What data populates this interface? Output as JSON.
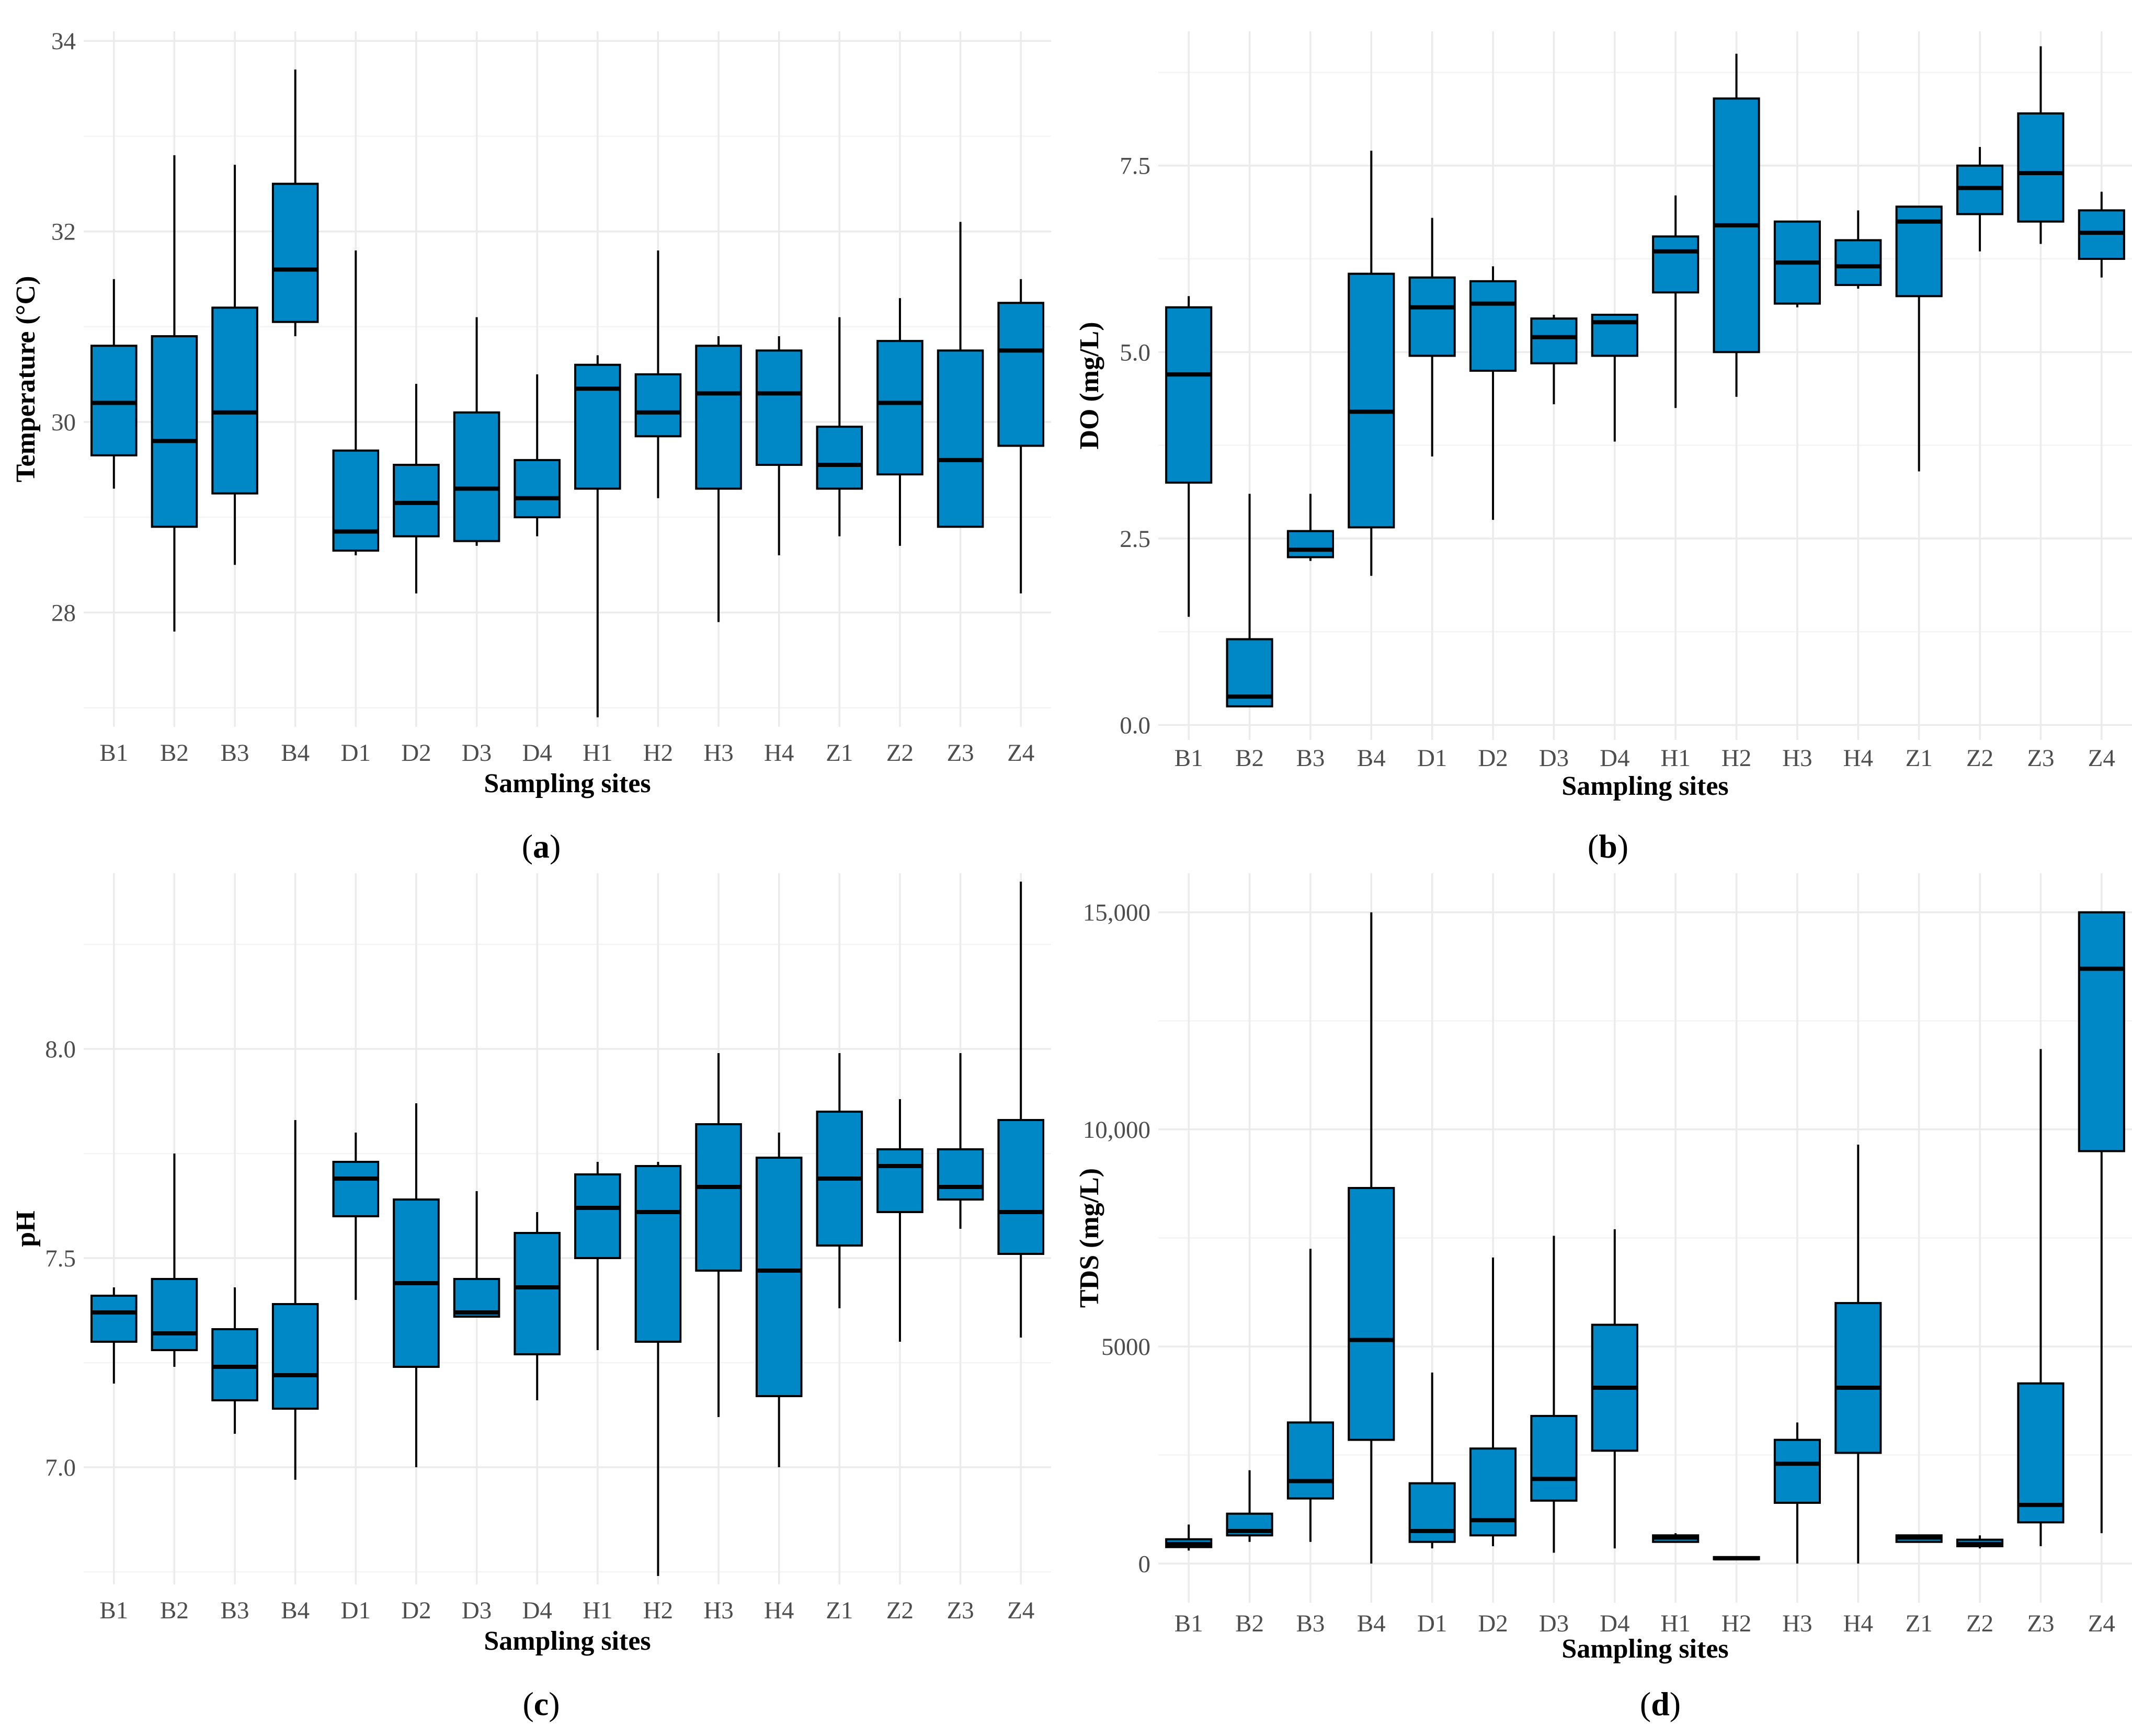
{
  "figure": {
    "colors": {
      "box_fill": "#0087c5",
      "line": "#000000",
      "grid": "#ebebeb"
    }
  },
  "chart_data": [
    {
      "id": "a",
      "type": "box",
      "panel_label": "a",
      "xlabel": "Sampling sites",
      "ylabel": "Temperature (°C)",
      "ylim": [
        26.8,
        34.1
      ],
      "yticks": [
        28,
        30,
        32,
        34
      ],
      "ytick_labels": [
        "28",
        "30",
        "32",
        "34"
      ],
      "categories": [
        "B1",
        "B2",
        "B3",
        "B4",
        "D1",
        "D2",
        "D3",
        "D4",
        "H1",
        "H2",
        "H3",
        "H4",
        "Z1",
        "Z2",
        "Z3",
        "Z4"
      ],
      "boxes": [
        {
          "min": 29.3,
          "q1": 29.65,
          "median": 30.2,
          "q3": 30.8,
          "max": 31.5
        },
        {
          "min": 27.8,
          "q1": 28.9,
          "median": 29.8,
          "q3": 30.9,
          "max": 32.8
        },
        {
          "min": 28.5,
          "q1": 29.25,
          "median": 30.1,
          "q3": 31.2,
          "max": 32.7
        },
        {
          "min": 30.9,
          "q1": 31.05,
          "median": 31.6,
          "q3": 32.5,
          "max": 33.7
        },
        {
          "min": 28.6,
          "q1": 28.65,
          "median": 28.85,
          "q3": 29.7,
          "max": 31.8
        },
        {
          "min": 28.2,
          "q1": 28.8,
          "median": 29.15,
          "q3": 29.55,
          "max": 30.4
        },
        {
          "min": 28.7,
          "q1": 28.75,
          "median": 29.3,
          "q3": 30.1,
          "max": 31.1
        },
        {
          "min": 28.8,
          "q1": 29.0,
          "median": 29.2,
          "q3": 29.6,
          "max": 30.5
        },
        {
          "min": 26.9,
          "q1": 29.3,
          "median": 30.35,
          "q3": 30.6,
          "max": 30.7
        },
        {
          "min": 29.2,
          "q1": 29.85,
          "median": 30.1,
          "q3": 30.5,
          "max": 31.8
        },
        {
          "min": 27.9,
          "q1": 29.3,
          "median": 30.3,
          "q3": 30.8,
          "max": 30.9
        },
        {
          "min": 28.6,
          "q1": 29.55,
          "median": 30.3,
          "q3": 30.75,
          "max": 30.9
        },
        {
          "min": 28.8,
          "q1": 29.3,
          "median": 29.55,
          "q3": 29.95,
          "max": 31.1
        },
        {
          "min": 28.7,
          "q1": 29.45,
          "median": 30.2,
          "q3": 30.85,
          "max": 31.3
        },
        {
          "min": 28.9,
          "q1": 28.9,
          "median": 29.6,
          "q3": 30.75,
          "max": 32.1
        },
        {
          "min": 28.2,
          "q1": 29.75,
          "median": 30.75,
          "q3": 31.25,
          "max": 31.5
        }
      ]
    },
    {
      "id": "b",
      "type": "box",
      "panel_label": "b",
      "xlabel": "Sampling sites",
      "ylabel": "DO (mg/L)",
      "ylim": [
        -0.2,
        9.3
      ],
      "yticks": [
        0,
        2.5,
        5,
        7.5
      ],
      "ytick_labels": [
        "0.0",
        "2.5",
        "5.0",
        "7.5"
      ],
      "categories": [
        "B1",
        "B2",
        "B3",
        "B4",
        "D1",
        "D2",
        "D3",
        "D4",
        "H1",
        "H2",
        "H3",
        "H4",
        "Z1",
        "Z2",
        "Z3",
        "Z4"
      ],
      "boxes": [
        {
          "min": 1.45,
          "q1": 3.25,
          "median": 4.7,
          "q3": 5.6,
          "max": 5.75
        },
        {
          "min": 0.25,
          "q1": 0.25,
          "median": 0.38,
          "q3": 1.15,
          "max": 3.1
        },
        {
          "min": 2.2,
          "q1": 2.25,
          "median": 2.35,
          "q3": 2.6,
          "max": 3.1
        },
        {
          "min": 2.0,
          "q1": 2.65,
          "median": 4.2,
          "q3": 6.05,
          "max": 7.7
        },
        {
          "min": 3.6,
          "q1": 4.95,
          "median": 5.6,
          "q3": 6.0,
          "max": 6.8
        },
        {
          "min": 2.75,
          "q1": 4.75,
          "median": 5.65,
          "q3": 5.95,
          "max": 6.15
        },
        {
          "min": 4.3,
          "q1": 4.85,
          "median": 5.2,
          "q3": 5.45,
          "max": 5.5
        },
        {
          "min": 3.8,
          "q1": 4.95,
          "median": 5.4,
          "q3": 5.5,
          "max": 5.5
        },
        {
          "min": 4.25,
          "q1": 5.8,
          "median": 6.35,
          "q3": 6.55,
          "max": 7.1
        },
        {
          "min": 4.4,
          "q1": 5.0,
          "median": 6.7,
          "q3": 8.4,
          "max": 9.0
        },
        {
          "min": 5.6,
          "q1": 5.65,
          "median": 6.2,
          "q3": 6.75,
          "max": 6.75
        },
        {
          "min": 5.85,
          "q1": 5.9,
          "median": 6.15,
          "q3": 6.5,
          "max": 6.9
        },
        {
          "min": 3.4,
          "q1": 5.75,
          "median": 6.75,
          "q3": 6.95,
          "max": 6.95
        },
        {
          "min": 6.35,
          "q1": 6.85,
          "median": 7.2,
          "q3": 7.5,
          "max": 7.75
        },
        {
          "min": 6.45,
          "q1": 6.75,
          "median": 7.4,
          "q3": 8.2,
          "max": 9.1
        },
        {
          "min": 6.0,
          "q1": 6.25,
          "median": 6.6,
          "q3": 6.9,
          "max": 7.15
        }
      ]
    },
    {
      "id": "c",
      "type": "box",
      "panel_label": "c",
      "xlabel": "Sampling sites",
      "ylabel": "pH",
      "ylim": [
        6.72,
        8.42
      ],
      "yticks": [
        7.0,
        7.5,
        8.0
      ],
      "ytick_labels": [
        "7.0",
        "7.5",
        "8.0"
      ],
      "categories": [
        "B1",
        "B2",
        "B3",
        "B4",
        "D1",
        "D2",
        "D3",
        "D4",
        "H1",
        "H2",
        "H3",
        "H4",
        "Z1",
        "Z2",
        "Z3",
        "Z4"
      ],
      "boxes": [
        {
          "min": 7.2,
          "q1": 7.3,
          "median": 7.37,
          "q3": 7.41,
          "max": 7.43
        },
        {
          "min": 7.24,
          "q1": 7.28,
          "median": 7.32,
          "q3": 7.45,
          "max": 7.75
        },
        {
          "min": 7.08,
          "q1": 7.16,
          "median": 7.24,
          "q3": 7.33,
          "max": 7.43
        },
        {
          "min": 6.97,
          "q1": 7.14,
          "median": 7.22,
          "q3": 7.39,
          "max": 7.83
        },
        {
          "min": 7.4,
          "q1": 7.6,
          "median": 7.69,
          "q3": 7.73,
          "max": 7.8
        },
        {
          "min": 7.0,
          "q1": 7.24,
          "median": 7.44,
          "q3": 7.64,
          "max": 7.87
        },
        {
          "min": 7.36,
          "q1": 7.36,
          "median": 7.37,
          "q3": 7.45,
          "max": 7.66
        },
        {
          "min": 7.16,
          "q1": 7.27,
          "median": 7.43,
          "q3": 7.56,
          "max": 7.61
        },
        {
          "min": 7.28,
          "q1": 7.5,
          "median": 7.62,
          "q3": 7.7,
          "max": 7.73
        },
        {
          "min": 6.74,
          "q1": 7.3,
          "median": 7.61,
          "q3": 7.72,
          "max": 7.73
        },
        {
          "min": 7.12,
          "q1": 7.47,
          "median": 7.67,
          "q3": 7.82,
          "max": 7.99
        },
        {
          "min": 7.0,
          "q1": 7.17,
          "median": 7.47,
          "q3": 7.74,
          "max": 7.8
        },
        {
          "min": 7.38,
          "q1": 7.53,
          "median": 7.69,
          "q3": 7.85,
          "max": 7.99
        },
        {
          "min": 7.3,
          "q1": 7.61,
          "median": 7.72,
          "q3": 7.76,
          "max": 7.88
        },
        {
          "min": 7.57,
          "q1": 7.64,
          "median": 7.67,
          "q3": 7.76,
          "max": 7.99
        },
        {
          "min": 7.31,
          "q1": 7.51,
          "median": 7.61,
          "q3": 7.83,
          "max": 8.4
        }
      ]
    },
    {
      "id": "d",
      "type": "box",
      "panel_label": "d",
      "xlabel": "Sampling sites",
      "ylabel": "TDS (mg/L)",
      "ylim": [
        -900,
        15900
      ],
      "yticks": [
        0,
        5000,
        10000,
        15000
      ],
      "ytick_labels": [
        "0",
        "5000",
        "10,000",
        "15,000"
      ],
      "categories": [
        "B1",
        "B2",
        "B3",
        "B4",
        "D1",
        "D2",
        "D3",
        "D4",
        "H1",
        "H2",
        "H3",
        "H4",
        "Z1",
        "Z2",
        "Z3",
        "Z4"
      ],
      "boxes": [
        {
          "min": 300,
          "q1": 380,
          "median": 450,
          "q3": 560,
          "max": 900
        },
        {
          "min": 500,
          "q1": 650,
          "median": 750,
          "q3": 1150,
          "max": 2150
        },
        {
          "min": 500,
          "q1": 1500,
          "median": 1900,
          "q3": 3250,
          "max": 7250
        },
        {
          "min": 0,
          "q1": 2850,
          "median": 5150,
          "q3": 8650,
          "max": 15000
        },
        {
          "min": 350,
          "q1": 500,
          "median": 750,
          "q3": 1850,
          "max": 4400
        },
        {
          "min": 400,
          "q1": 650,
          "median": 1000,
          "q3": 2650,
          "max": 7050
        },
        {
          "min": 250,
          "q1": 1450,
          "median": 1950,
          "q3": 3400,
          "max": 7550
        },
        {
          "min": 350,
          "q1": 2600,
          "median": 4050,
          "q3": 5500,
          "max": 7700
        },
        {
          "min": 500,
          "q1": 500,
          "median": 600,
          "q3": 650,
          "max": 700
        },
        {
          "min": 100,
          "q1": 100,
          "median": 120,
          "q3": 150,
          "max": 150
        },
        {
          "min": 0,
          "q1": 1400,
          "median": 2300,
          "q3": 2850,
          "max": 3250
        },
        {
          "min": 0,
          "q1": 2550,
          "median": 4050,
          "q3": 6000,
          "max": 9650
        },
        {
          "min": 500,
          "q1": 500,
          "median": 600,
          "q3": 650,
          "max": 650
        },
        {
          "min": 350,
          "q1": 400,
          "median": 450,
          "q3": 550,
          "max": 650
        },
        {
          "min": 400,
          "q1": 950,
          "median": 1350,
          "q3": 4150,
          "max": 11850
        },
        {
          "min": 700,
          "q1": 9500,
          "median": 13700,
          "q3": 15000,
          "max": 15000
        }
      ]
    }
  ]
}
